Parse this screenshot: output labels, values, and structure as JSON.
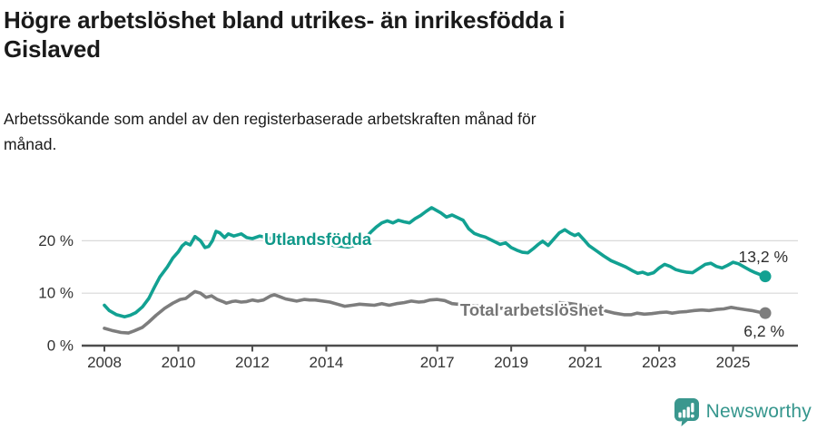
{
  "header": {
    "title_line1": "Högre arbetslöshet bland utrikes- än inrikesfödda i",
    "title_line2": "Gislaved",
    "subtitle_line1": "Arbetssökande som andel av den registerbaserade arbetskraften månad för",
    "subtitle_line2": "månad."
  },
  "chart_data": {
    "type": "line",
    "title": "Högre arbetslöshet bland utrikes- än inrikesfödda i Gislaved",
    "subtitle": "Arbetssökande som andel av den registerbaserade arbetskraften månad för månad.",
    "xlabel": "",
    "ylabel": "",
    "x_unit": "year (monthly data)",
    "y_unit": "%",
    "xlim": [
      2008,
      2026
    ],
    "ylim": [
      0,
      27.5
    ],
    "grid": true,
    "gridline_values": [
      10,
      20
    ],
    "legend_position": "inline-labels-on-lines",
    "x_ticks": [
      2008,
      2010,
      2012,
      2014,
      2017,
      2019,
      2021,
      2023,
      2025
    ],
    "y_ticks": [
      {
        "value": 0,
        "label": "0 %"
      },
      {
        "value": 10,
        "label": "10 %"
      },
      {
        "value": 20,
        "label": "20 %"
      }
    ],
    "series": [
      {
        "name": "Total arbetslöshet",
        "color": "#7d7d7d",
        "label_color": "#757575",
        "end_label": "6,2 %",
        "end_value": 6.2,
        "inline_label": {
          "text": "Total arbetslöshet",
          "year": 2017.62,
          "value": 6.8
        },
        "points": [
          [
            2008.0,
            3.3
          ],
          [
            2008.2,
            2.9
          ],
          [
            2008.45,
            2.5
          ],
          [
            2008.65,
            2.4
          ],
          [
            2008.8,
            2.8
          ],
          [
            2009.03,
            3.5
          ],
          [
            2009.2,
            4.5
          ],
          [
            2009.4,
            5.8
          ],
          [
            2009.63,
            7.1
          ],
          [
            2009.85,
            8.1
          ],
          [
            2010.05,
            8.8
          ],
          [
            2010.2,
            9.0
          ],
          [
            2010.33,
            9.7
          ],
          [
            2010.45,
            10.3
          ],
          [
            2010.6,
            10.0
          ],
          [
            2010.75,
            9.2
          ],
          [
            2010.9,
            9.5
          ],
          [
            2011.05,
            8.8
          ],
          [
            2011.2,
            8.4
          ],
          [
            2011.3,
            8.1
          ],
          [
            2011.45,
            8.4
          ],
          [
            2011.55,
            8.5
          ],
          [
            2011.7,
            8.3
          ],
          [
            2011.85,
            8.4
          ],
          [
            2012.0,
            8.7
          ],
          [
            2012.15,
            8.5
          ],
          [
            2012.3,
            8.7
          ],
          [
            2012.5,
            9.5
          ],
          [
            2012.6,
            9.7
          ],
          [
            2012.75,
            9.3
          ],
          [
            2012.9,
            8.9
          ],
          [
            2013.05,
            8.7
          ],
          [
            2013.2,
            8.5
          ],
          [
            2013.4,
            8.8
          ],
          [
            2013.55,
            8.7
          ],
          [
            2013.7,
            8.7
          ],
          [
            2013.9,
            8.5
          ],
          [
            2014.1,
            8.3
          ],
          [
            2014.3,
            7.9
          ],
          [
            2014.5,
            7.5
          ],
          [
            2014.7,
            7.7
          ],
          [
            2014.9,
            7.9
          ],
          [
            2015.1,
            7.8
          ],
          [
            2015.3,
            7.7
          ],
          [
            2015.5,
            8.0
          ],
          [
            2015.7,
            7.7
          ],
          [
            2015.9,
            8.0
          ],
          [
            2016.1,
            8.2
          ],
          [
            2016.3,
            8.5
          ],
          [
            2016.5,
            8.3
          ],
          [
            2016.65,
            8.4
          ],
          [
            2016.8,
            8.7
          ],
          [
            2017.0,
            8.8
          ],
          [
            2017.2,
            8.6
          ],
          [
            2017.4,
            8.0
          ],
          [
            2017.7,
            7.8
          ],
          [
            2018.0,
            7.6
          ],
          [
            2018.4,
            7.3
          ],
          [
            2018.8,
            7.1
          ],
          [
            2019.2,
            7.0
          ],
          [
            2019.6,
            6.9
          ],
          [
            2020.0,
            7.2
          ],
          [
            2020.3,
            8.2
          ],
          [
            2020.6,
            8.0
          ],
          [
            2020.9,
            7.7
          ],
          [
            2021.2,
            7.2
          ],
          [
            2021.5,
            6.7
          ],
          [
            2021.8,
            6.2
          ],
          [
            2022.05,
            5.9
          ],
          [
            2022.25,
            5.9
          ],
          [
            2022.4,
            6.2
          ],
          [
            2022.6,
            6.0
          ],
          [
            2022.8,
            6.1
          ],
          [
            2023.0,
            6.3
          ],
          [
            2023.2,
            6.4
          ],
          [
            2023.35,
            6.2
          ],
          [
            2023.55,
            6.4
          ],
          [
            2023.75,
            6.5
          ],
          [
            2023.95,
            6.7
          ],
          [
            2024.15,
            6.8
          ],
          [
            2024.35,
            6.7
          ],
          [
            2024.55,
            6.9
          ],
          [
            2024.75,
            7.0
          ],
          [
            2024.95,
            7.3
          ],
          [
            2025.1,
            7.1
          ],
          [
            2025.3,
            6.9
          ],
          [
            2025.5,
            6.7
          ],
          [
            2025.7,
            6.4
          ],
          [
            2025.87,
            6.2
          ]
        ]
      },
      {
        "name": "Utlandsfödda",
        "color": "#12a192",
        "label_color": "#0f9889",
        "end_label": "13,2 %",
        "end_value": 13.2,
        "inline_label": {
          "text": "Utlandsfödda",
          "year": 2012.32,
          "value": 20.35
        },
        "points": [
          [
            2008.0,
            7.7
          ],
          [
            2008.13,
            6.7
          ],
          [
            2008.33,
            5.9
          ],
          [
            2008.55,
            5.5
          ],
          [
            2008.7,
            5.8
          ],
          [
            2008.85,
            6.3
          ],
          [
            2009.03,
            7.4
          ],
          [
            2009.2,
            9.0
          ],
          [
            2009.35,
            11.1
          ],
          [
            2009.5,
            13.1
          ],
          [
            2009.7,
            15.0
          ],
          [
            2009.85,
            16.7
          ],
          [
            2010.0,
            17.9
          ],
          [
            2010.1,
            19.0
          ],
          [
            2010.2,
            19.6
          ],
          [
            2010.32,
            19.2
          ],
          [
            2010.45,
            20.8
          ],
          [
            2010.6,
            20.0
          ],
          [
            2010.72,
            18.7
          ],
          [
            2010.82,
            18.9
          ],
          [
            2010.92,
            20.0
          ],
          [
            2011.02,
            21.8
          ],
          [
            2011.12,
            21.5
          ],
          [
            2011.25,
            20.6
          ],
          [
            2011.35,
            21.3
          ],
          [
            2011.5,
            20.9
          ],
          [
            2011.7,
            21.3
          ],
          [
            2011.85,
            20.6
          ],
          [
            2012.0,
            20.4
          ],
          [
            2012.2,
            20.9
          ],
          [
            2012.4,
            20.6
          ],
          [
            2012.6,
            20.3
          ],
          [
            2012.8,
            20.6
          ],
          [
            2013.0,
            20.9
          ],
          [
            2013.2,
            20.5
          ],
          [
            2013.45,
            20.2
          ],
          [
            2013.7,
            20.0
          ],
          [
            2013.95,
            19.6
          ],
          [
            2014.2,
            19.1
          ],
          [
            2014.45,
            18.9
          ],
          [
            2014.6,
            18.8
          ],
          [
            2014.8,
            19.2
          ],
          [
            2015.0,
            20.1
          ],
          [
            2015.2,
            21.6
          ],
          [
            2015.35,
            22.6
          ],
          [
            2015.5,
            23.4
          ],
          [
            2015.65,
            23.8
          ],
          [
            2015.8,
            23.4
          ],
          [
            2015.95,
            23.9
          ],
          [
            2016.1,
            23.6
          ],
          [
            2016.25,
            23.4
          ],
          [
            2016.4,
            24.2
          ],
          [
            2016.55,
            24.8
          ],
          [
            2016.7,
            25.6
          ],
          [
            2016.85,
            26.3
          ],
          [
            2017.0,
            25.7
          ],
          [
            2017.1,
            25.3
          ],
          [
            2017.25,
            24.5
          ],
          [
            2017.4,
            24.9
          ],
          [
            2017.55,
            24.4
          ],
          [
            2017.7,
            23.9
          ],
          [
            2017.85,
            22.3
          ],
          [
            2018.0,
            21.4
          ],
          [
            2018.15,
            21.0
          ],
          [
            2018.3,
            20.7
          ],
          [
            2018.5,
            20.0
          ],
          [
            2018.7,
            19.3
          ],
          [
            2018.85,
            19.6
          ],
          [
            2019.0,
            18.7
          ],
          [
            2019.15,
            18.2
          ],
          [
            2019.3,
            17.8
          ],
          [
            2019.45,
            17.7
          ],
          [
            2019.6,
            18.5
          ],
          [
            2019.75,
            19.4
          ],
          [
            2019.85,
            19.9
          ],
          [
            2020.0,
            19.1
          ],
          [
            2020.15,
            20.3
          ],
          [
            2020.3,
            21.5
          ],
          [
            2020.45,
            22.1
          ],
          [
            2020.6,
            21.4
          ],
          [
            2020.72,
            21.0
          ],
          [
            2020.82,
            21.3
          ],
          [
            2020.95,
            20.3
          ],
          [
            2021.1,
            19.1
          ],
          [
            2021.3,
            18.1
          ],
          [
            2021.5,
            17.1
          ],
          [
            2021.7,
            16.2
          ],
          [
            2021.9,
            15.6
          ],
          [
            2022.1,
            15.0
          ],
          [
            2022.3,
            14.2
          ],
          [
            2022.42,
            13.8
          ],
          [
            2022.55,
            14.0
          ],
          [
            2022.7,
            13.6
          ],
          [
            2022.85,
            13.9
          ],
          [
            2023.0,
            14.8
          ],
          [
            2023.15,
            15.5
          ],
          [
            2023.3,
            15.1
          ],
          [
            2023.45,
            14.5
          ],
          [
            2023.6,
            14.2
          ],
          [
            2023.75,
            14.0
          ],
          [
            2023.9,
            13.9
          ],
          [
            2024.1,
            14.8
          ],
          [
            2024.25,
            15.5
          ],
          [
            2024.4,
            15.7
          ],
          [
            2024.55,
            15.1
          ],
          [
            2024.7,
            14.8
          ],
          [
            2024.85,
            15.3
          ],
          [
            2025.0,
            15.9
          ],
          [
            2025.15,
            15.6
          ],
          [
            2025.3,
            15.0
          ],
          [
            2025.45,
            14.4
          ],
          [
            2025.6,
            13.9
          ],
          [
            2025.75,
            13.5
          ],
          [
            2025.87,
            13.2
          ]
        ]
      }
    ],
    "colors": {
      "axis": "#4d4d4d",
      "grid": "#d9d9d9",
      "tick_label": "#333333",
      "value_label": "#2e2e2e"
    }
  },
  "footer": {
    "brand": "Newsworthy",
    "brand_color": "#35968d",
    "icon": "newsworthy-bubble-bar-chart-icon",
    "icon_color": "#3a978e"
  }
}
